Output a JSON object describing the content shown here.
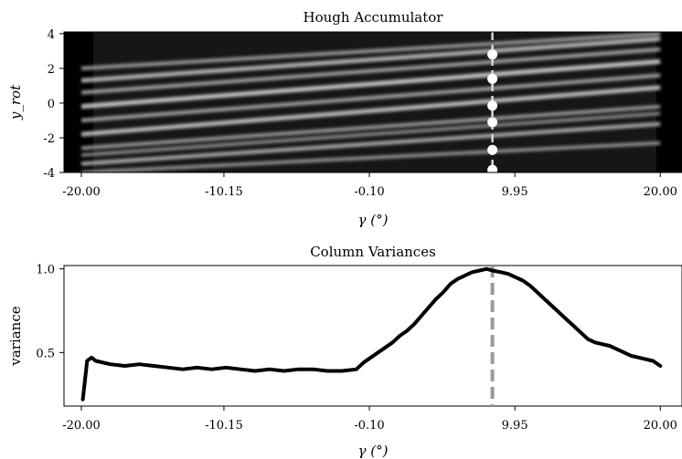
{
  "chart_data": [
    {
      "type": "heatmap",
      "title": "Hough Accumulator",
      "xlabel": "γ (°)",
      "ylabel": "y_rot",
      "xlim": [
        -21.2,
        21.5
      ],
      "ylim": [
        -4,
        4.1
      ],
      "xticks": [
        -20.0,
        -10.15,
        -0.1,
        9.95,
        20.0
      ],
      "xtick_labels": [
        "-20.00",
        "-10.15",
        "-0.10",
        "9.95",
        "20.00"
      ],
      "yticks": [
        4,
        2,
        0,
        -2,
        -4
      ],
      "ytick_labels": [
        "4",
        "2",
        "0",
        "-2",
        "-4"
      ],
      "marker_line_x": 8.4,
      "peaks": [
        {
          "x": 8.4,
          "y": 2.8
        },
        {
          "x": 8.4,
          "y": 1.4
        },
        {
          "x": 8.4,
          "y": -0.15
        },
        {
          "x": 8.4,
          "y": -1.1
        },
        {
          "x": 8.4,
          "y": -2.7
        },
        {
          "x": 8.4,
          "y": -3.85
        }
      ],
      "streaks": [
        {
          "y0": -3.5,
          "y1": -1.2,
          "intensity": 0.55
        },
        {
          "y0": -2.6,
          "y1": -0.2,
          "intensity": 0.45
        },
        {
          "y0": -1.8,
          "y1": 0.9,
          "intensity": 0.7
        },
        {
          "y0": -1.0,
          "y1": 1.6,
          "intensity": 0.5
        },
        {
          "y0": -0.2,
          "y1": 2.4,
          "intensity": 0.75
        },
        {
          "y0": 0.6,
          "y1": 3.1,
          "intensity": 0.5
        },
        {
          "y0": 1.3,
          "y1": 3.7,
          "intensity": 0.65
        },
        {
          "y0": -4.0,
          "y1": -2.3,
          "intensity": 0.4
        },
        {
          "y0": 2.0,
          "y1": 4.0,
          "intensity": 0.45
        },
        {
          "y0": -3.0,
          "y1": -0.6,
          "intensity": 0.35
        }
      ]
    },
    {
      "type": "line",
      "title": "Column Variances",
      "xlabel": "γ (°)",
      "ylabel": "variance",
      "xlim": [
        -21.2,
        21.5
      ],
      "ylim": [
        0.18,
        1.02
      ],
      "xticks": [
        -20.0,
        -10.15,
        -0.1,
        9.95,
        20.0
      ],
      "xtick_labels": [
        "-20.00",
        "-10.15",
        "-0.10",
        "9.95",
        "20.00"
      ],
      "yticks": [
        1.0,
        0.5
      ],
      "ytick_labels": [
        "1.0",
        "0.5"
      ],
      "marker_line_x": 8.4,
      "series": [
        {
          "x": [
            -19.9,
            -19.6,
            -19.3,
            -19.0,
            -18.0,
            -17.0,
            -16.0,
            -15.0,
            -14.0,
            -13.0,
            -12.0,
            -11.0,
            -10.0,
            -9.0,
            -8.0,
            -7.0,
            -6.0,
            -5.0,
            -4.0,
            -3.0,
            -2.0,
            -1.0,
            -0.5,
            0.0,
            0.5,
            1.0,
            1.5,
            2.0,
            2.5,
            3.0,
            3.5,
            4.0,
            4.5,
            5.0,
            5.5,
            6.0,
            6.5,
            7.0,
            7.5,
            8.0,
            8.4,
            9.0,
            9.5,
            10.0,
            10.5,
            11.0,
            11.5,
            12.0,
            12.5,
            13.0,
            13.5,
            14.0,
            14.5,
            15.0,
            15.5,
            16.0,
            16.5,
            17.0,
            17.5,
            18.0,
            18.5,
            19.0,
            19.5,
            20.0
          ],
          "y": [
            0.22,
            0.45,
            0.47,
            0.45,
            0.43,
            0.42,
            0.43,
            0.42,
            0.41,
            0.4,
            0.41,
            0.4,
            0.41,
            0.4,
            0.39,
            0.4,
            0.39,
            0.4,
            0.4,
            0.39,
            0.39,
            0.4,
            0.44,
            0.47,
            0.5,
            0.53,
            0.56,
            0.6,
            0.63,
            0.67,
            0.72,
            0.77,
            0.82,
            0.86,
            0.91,
            0.94,
            0.96,
            0.98,
            0.99,
            1.0,
            0.99,
            0.98,
            0.97,
            0.95,
            0.93,
            0.9,
            0.86,
            0.82,
            0.78,
            0.74,
            0.7,
            0.66,
            0.62,
            0.58,
            0.56,
            0.55,
            0.54,
            0.52,
            0.5,
            0.48,
            0.47,
            0.46,
            0.45,
            0.42
          ]
        }
      ]
    }
  ]
}
